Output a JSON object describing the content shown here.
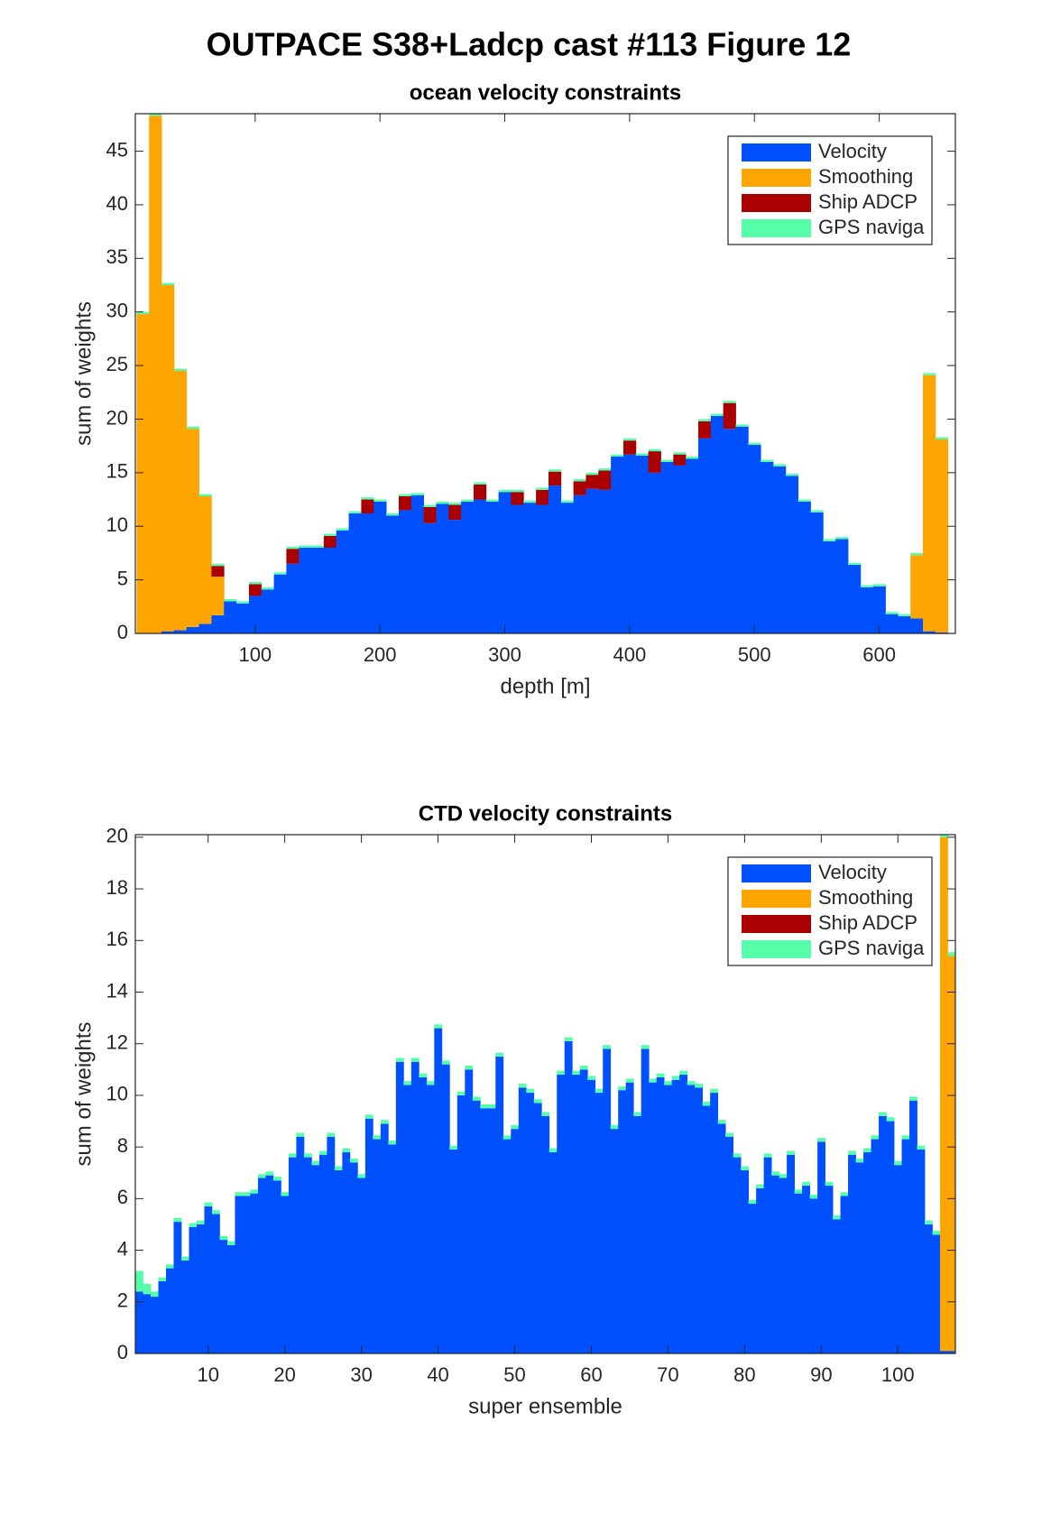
{
  "title": "OUTPACE S38+Ladcp cast #113  Figure 12",
  "chart_data": [
    {
      "type": "bar",
      "stacked": true,
      "title": "ocean velocity constraints",
      "xlabel": "depth [m]",
      "ylabel": "sum of weights",
      "x": [
        10,
        20,
        30,
        40,
        50,
        60,
        70,
        80,
        90,
        100,
        110,
        120,
        130,
        140,
        150,
        160,
        170,
        180,
        190,
        200,
        210,
        220,
        230,
        240,
        250,
        260,
        270,
        280,
        290,
        300,
        310,
        320,
        330,
        340,
        350,
        360,
        370,
        380,
        390,
        400,
        410,
        420,
        430,
        440,
        450,
        460,
        470,
        480,
        490,
        500,
        510,
        520,
        530,
        540,
        550,
        560,
        570,
        580,
        590,
        600,
        610,
        620,
        630,
        640,
        650
      ],
      "xlim": [
        4,
        661
      ],
      "xticks": [
        100,
        200,
        300,
        400,
        500,
        600
      ],
      "ylim": [
        0,
        48.5
      ],
      "yticks": [
        0,
        5,
        10,
        15,
        20,
        25,
        30,
        35,
        40,
        45
      ],
      "legend": "upper right",
      "series": [
        {
          "name": "Velocity",
          "color": "#0050ff",
          "values": [
            0,
            0,
            0.2,
            0.3,
            0.6,
            0.9,
            1.7,
            3.0,
            2.8,
            3.5,
            4.1,
            5.5,
            6.5,
            8.0,
            8.0,
            8.0,
            9.6,
            11.2,
            11.2,
            12.3,
            11.0,
            11.5,
            12.9,
            10.3,
            12.1,
            10.6,
            12.3,
            12.5,
            12.3,
            13.2,
            12.0,
            12.2,
            12.0,
            13.8,
            12.2,
            12.9,
            13.5,
            13.4,
            16.5,
            16.7,
            16.6,
            15.0,
            16.0,
            15.7,
            16.3,
            18.2,
            20.3,
            19.1,
            19.3,
            17.6,
            16.0,
            15.6,
            14.7,
            12.3,
            11.3,
            8.6,
            8.8,
            6.4,
            4.3,
            4.4,
            1.8,
            1.6,
            1.4,
            0.2,
            0.1
          ]
        },
        {
          "name": "Smoothing",
          "color": "#ffa500",
          "values": [
            29.8,
            48.3,
            32.3,
            24.2,
            18.5,
            11.9,
            3.6,
            0,
            0,
            0,
            0,
            0,
            0,
            0,
            0,
            0,
            0,
            0,
            0,
            0,
            0,
            0,
            0,
            0,
            0,
            0,
            0,
            0,
            0,
            0,
            0,
            0,
            0,
            0,
            0,
            0,
            0,
            0,
            0,
            0,
            0,
            0,
            0,
            0,
            0,
            0,
            0,
            0,
            0,
            0,
            0,
            0,
            0,
            0,
            0,
            0,
            0,
            0,
            0,
            0,
            0,
            0,
            5.9,
            23.9,
            18.0
          ]
        },
        {
          "name": "Ship ADCP",
          "color": "#aa0000",
          "values": [
            0,
            0,
            0,
            0,
            0,
            0,
            1.0,
            0,
            0,
            1.1,
            0,
            0,
            1.4,
            0,
            0,
            1.1,
            0,
            0,
            1.3,
            0,
            0,
            1.3,
            0,
            1.5,
            0,
            1.4,
            0,
            1.4,
            0,
            0,
            1.2,
            0,
            1.4,
            1.3,
            0,
            1.3,
            1.3,
            1.8,
            0,
            1.3,
            0,
            2.0,
            0,
            1.0,
            0,
            1.6,
            0,
            2.4,
            0,
            0,
            0,
            0,
            0,
            0,
            0,
            0,
            0,
            0,
            0,
            0,
            0,
            0,
            0,
            0,
            0
          ]
        },
        {
          "name": "GPS naviga",
          "color": "#55ffaa",
          "values": [
            0.2,
            0.2,
            0.2,
            0.2,
            0.2,
            0.2,
            0.2,
            0.2,
            0.2,
            0.2,
            0.2,
            0.2,
            0.2,
            0.2,
            0.2,
            0.2,
            0.2,
            0.2,
            0.2,
            0.2,
            0.2,
            0.2,
            0.2,
            0.2,
            0.2,
            0.2,
            0.2,
            0.2,
            0.2,
            0.2,
            0.2,
            0.2,
            0.2,
            0.2,
            0.2,
            0.2,
            0.2,
            0.2,
            0.2,
            0.2,
            0.2,
            0.2,
            0.2,
            0.2,
            0.2,
            0.2,
            0.2,
            0.2,
            0.2,
            0.2,
            0.2,
            0.2,
            0.2,
            0.2,
            0.2,
            0.2,
            0.2,
            0.2,
            0.2,
            0.2,
            0.2,
            0.2,
            0.2,
            0.2,
            0.2
          ]
        }
      ]
    },
    {
      "type": "bar",
      "stacked": true,
      "title": "CTD velocity constraints",
      "xlabel": "super ensemble",
      "ylabel": "sum of weights",
      "x": [
        1,
        2,
        3,
        4,
        5,
        6,
        7,
        8,
        9,
        10,
        11,
        12,
        13,
        14,
        15,
        16,
        17,
        18,
        19,
        20,
        21,
        22,
        23,
        24,
        25,
        26,
        27,
        28,
        29,
        30,
        31,
        32,
        33,
        34,
        35,
        36,
        37,
        38,
        39,
        40,
        41,
        42,
        43,
        44,
        45,
        46,
        47,
        48,
        49,
        50,
        51,
        52,
        53,
        54,
        55,
        56,
        57,
        58,
        59,
        60,
        61,
        62,
        63,
        64,
        65,
        66,
        67,
        68,
        69,
        70,
        71,
        72,
        73,
        74,
        75,
        76,
        77,
        78,
        79,
        80,
        81,
        82,
        83,
        84,
        85,
        86,
        87,
        88,
        89,
        90,
        91,
        92,
        93,
        94,
        95,
        96,
        97,
        98,
        99,
        100,
        101,
        102,
        103,
        104,
        105,
        106,
        107
      ],
      "xlim": [
        0.5,
        107.5
      ],
      "xticks": [
        10,
        20,
        30,
        40,
        50,
        60,
        70,
        80,
        90,
        100
      ],
      "ylim": [
        0,
        20.1
      ],
      "yticks": [
        0,
        2,
        4,
        6,
        8,
        10,
        12,
        14,
        16,
        18,
        20
      ],
      "legend": "upper right",
      "series": [
        {
          "name": "Velocity",
          "color": "#0050ff",
          "values": [
            2.4,
            2.3,
            2.2,
            2.8,
            3.3,
            5.1,
            3.6,
            4.9,
            5.0,
            5.7,
            5.4,
            4.4,
            4.2,
            6.1,
            6.1,
            6.2,
            6.8,
            6.9,
            6.7,
            6.1,
            7.6,
            8.4,
            7.6,
            7.3,
            7.7,
            8.4,
            7.1,
            7.8,
            7.4,
            6.8,
            9.1,
            8.3,
            8.9,
            8.1,
            11.3,
            10.4,
            11.3,
            10.7,
            10.4,
            12.6,
            11.2,
            7.9,
            10.0,
            11.0,
            9.8,
            9.5,
            9.5,
            11.5,
            8.3,
            8.7,
            10.3,
            10.1,
            9.7,
            9.2,
            7.8,
            10.8,
            12.1,
            10.8,
            11.0,
            10.6,
            10.1,
            11.8,
            8.7,
            10.2,
            10.5,
            9.2,
            11.8,
            10.5,
            10.7,
            10.4,
            10.6,
            10.8,
            10.4,
            10.3,
            9.6,
            10.1,
            8.9,
            8.4,
            7.6,
            7.1,
            5.8,
            6.4,
            7.6,
            6.9,
            6.8,
            7.7,
            6.2,
            6.5,
            6.0,
            8.2,
            6.5,
            5.2,
            6.1,
            7.7,
            7.4,
            7.8,
            8.3,
            9.2,
            9.0,
            7.3,
            8.3,
            9.8,
            7.9,
            5.0,
            4.6,
            0.1,
            0.1
          ]
        },
        {
          "name": "Smoothing",
          "color": "#ffa500",
          "values": [
            0,
            0,
            0,
            0,
            0,
            0,
            0,
            0,
            0,
            0,
            0,
            0,
            0,
            0,
            0,
            0,
            0,
            0,
            0,
            0,
            0,
            0,
            0,
            0,
            0,
            0,
            0,
            0,
            0,
            0,
            0,
            0,
            0,
            0,
            0,
            0,
            0,
            0,
            0,
            0,
            0,
            0,
            0,
            0,
            0,
            0,
            0,
            0,
            0,
            0,
            0,
            0,
            0,
            0,
            0,
            0,
            0,
            0,
            0,
            0,
            0,
            0,
            0,
            0,
            0,
            0,
            0,
            0,
            0,
            0,
            0,
            0,
            0,
            0,
            0,
            0,
            0,
            0,
            0,
            0,
            0,
            0,
            0,
            0,
            0,
            0,
            0,
            0,
            0,
            0,
            0,
            0,
            0,
            0,
            0,
            0,
            0,
            0,
            0,
            0,
            0,
            0,
            0,
            0,
            0,
            19.9,
            15.3
          ]
        },
        {
          "name": "Ship ADCP",
          "color": "#aa0000",
          "values": [
            0,
            0,
            0,
            0,
            0,
            0,
            0,
            0,
            0,
            0,
            0,
            0,
            0,
            0,
            0,
            0,
            0,
            0,
            0,
            0,
            0,
            0,
            0,
            0,
            0,
            0,
            0,
            0,
            0,
            0,
            0,
            0,
            0,
            0,
            0,
            0,
            0,
            0,
            0,
            0,
            0,
            0,
            0,
            0,
            0,
            0,
            0,
            0,
            0,
            0,
            0,
            0,
            0,
            0,
            0,
            0,
            0,
            0,
            0,
            0,
            0,
            0,
            0,
            0,
            0,
            0,
            0,
            0,
            0,
            0,
            0,
            0,
            0,
            0,
            0,
            0,
            0,
            0,
            0,
            0,
            0,
            0,
            0,
            0,
            0,
            0,
            0,
            0,
            0,
            0,
            0,
            0,
            0,
            0,
            0,
            0,
            0,
            0,
            0,
            0,
            0,
            0,
            0,
            0,
            0,
            0,
            0
          ]
        },
        {
          "name": "GPS naviga",
          "color": "#55ffaa",
          "values": [
            0.8,
            0.4,
            0.2,
            0.15,
            0.15,
            0.15,
            0.15,
            0.15,
            0.15,
            0.15,
            0.15,
            0.15,
            0.15,
            0.15,
            0.15,
            0.15,
            0.15,
            0.15,
            0.15,
            0.15,
            0.15,
            0.15,
            0.15,
            0.15,
            0.15,
            0.15,
            0.15,
            0.15,
            0.15,
            0.15,
            0.15,
            0.15,
            0.15,
            0.15,
            0.15,
            0.15,
            0.15,
            0.15,
            0.15,
            0.15,
            0.15,
            0.15,
            0.15,
            0.15,
            0.15,
            0.15,
            0.15,
            0.15,
            0.15,
            0.15,
            0.15,
            0.15,
            0.15,
            0.15,
            0.15,
            0.15,
            0.15,
            0.15,
            0.15,
            0.15,
            0.15,
            0.15,
            0.15,
            0.15,
            0.15,
            0.15,
            0.15,
            0.15,
            0.15,
            0.15,
            0.15,
            0.15,
            0.15,
            0.15,
            0.15,
            0.15,
            0.15,
            0.15,
            0.15,
            0.15,
            0.15,
            0.15,
            0.15,
            0.15,
            0.15,
            0.15,
            0.15,
            0.15,
            0.15,
            0.15,
            0.15,
            0.15,
            0.15,
            0.15,
            0.15,
            0.15,
            0.15,
            0.15,
            0.15,
            0.15,
            0.15,
            0.15,
            0.15,
            0.15,
            0.15,
            0.15,
            0.15
          ]
        }
      ]
    }
  ]
}
